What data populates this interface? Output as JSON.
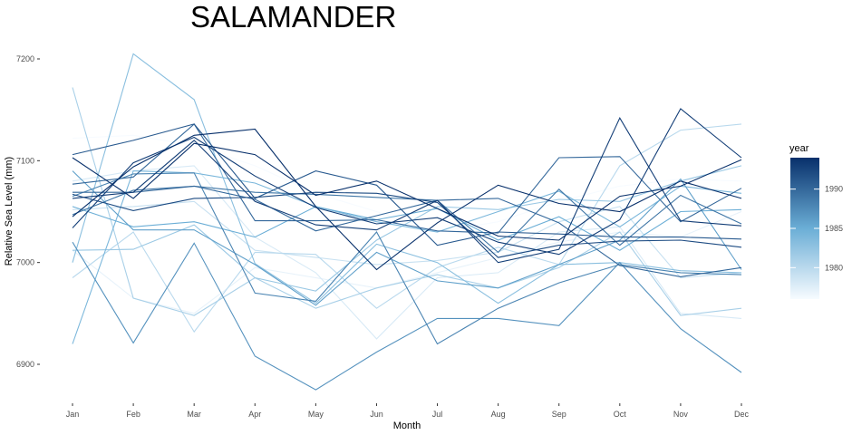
{
  "chart_data": {
    "type": "line",
    "title": "SALAMANDER",
    "xlabel": "Month",
    "ylabel": "Relative Sea Level (mm)",
    "categories": [
      "Jan",
      "Feb",
      "Mar",
      "Apr",
      "May",
      "Jun",
      "Jul",
      "Aug",
      "Sep",
      "Oct",
      "Nov",
      "Dec"
    ],
    "ylim": [
      6860,
      7220
    ],
    "yticks": [
      6900,
      7000,
      7100,
      7200
    ],
    "grid": false,
    "legend": {
      "title": "year",
      "position": "right",
      "type": "colorbar",
      "range": [
        1976,
        1994
      ],
      "ticks": [
        1980,
        1985,
        1990
      ],
      "colors": [
        "#f7fbff",
        "#08306b"
      ]
    },
    "series": [
      {
        "year": 1976,
        "values": [
          7122,
          7125,
          7115,
          7095,
          7068,
          7050,
          7030,
          7040,
          7060,
          7075,
          7082,
          7080
        ]
      },
      {
        "year": 1977,
        "values": [
          7012,
          6965,
          6950,
          6995,
          6985,
          6975,
          6990,
          7005,
          7020,
          7030,
          7025,
          7050
        ]
      },
      {
        "year": 1978,
        "values": [
          7080,
          7090,
          7095,
          7025,
          6990,
          6925,
          6985,
          6990,
          7030,
          7035,
          6950,
          6945
        ]
      },
      {
        "year": 1979,
        "values": [
          7052,
          7055,
          7060,
          7012,
          7005,
          6998,
          7002,
          7010,
          7040,
          7055,
          6985,
          6990
        ]
      },
      {
        "year": 1980,
        "values": [
          6985,
          7030,
          6932,
          7010,
          7008,
          6955,
          6995,
          7015,
          6998,
          7095,
          7130,
          7136
        ]
      },
      {
        "year": 1981,
        "values": [
          7172,
          6965,
          6948,
          6985,
          6955,
          6975,
          6988,
          6975,
          6995,
          7030,
          6948,
          6955
        ]
      },
      {
        "year": 1982,
        "values": [
          7012,
          7013,
          7037,
          6985,
          6972,
          7022,
          7055,
          7052,
          7062,
          7060,
          7080,
          7095
        ]
      },
      {
        "year": 1983,
        "values": [
          7000,
          7205,
          7160,
          6999,
          6960,
          7018,
          7000,
          6960,
          6998,
          7000,
          6992,
          6990
        ]
      },
      {
        "year": 1984,
        "values": [
          6920,
          7090,
          7088,
          7078,
          7055,
          7040,
          7030,
          7050,
          7070,
          7035,
          7075,
          7068
        ]
      },
      {
        "year": 1985,
        "values": [
          7055,
          7035,
          7040,
          7025,
          7055,
          7042,
          7053,
          7022,
          7045,
          7012,
          7050,
          7052
        ]
      },
      {
        "year": 1986,
        "values": [
          7090,
          7032,
          7032,
          6998,
          6958,
          7010,
          6982,
          6975,
          6998,
          7022,
          7082,
          6993
        ]
      },
      {
        "year": 1987,
        "values": [
          7020,
          6921,
          7019,
          6908,
          6875,
          6912,
          6945,
          6945,
          6938,
          7000,
          6935,
          6892
        ]
      },
      {
        "year": 1988,
        "values": [
          7065,
          7087,
          7088,
          6970,
          6962,
          7030,
          6920,
          6955,
          6980,
          6998,
          6990,
          6988
        ]
      },
      {
        "year": 1989,
        "values": [
          7047,
          7071,
          7075,
          7069,
          7067,
          7064,
          7061,
          7010,
          7072,
          7017,
          7066,
          7038
        ]
      },
      {
        "year": 1990,
        "values": [
          7069,
          7069,
          7075,
          7062,
          7031,
          7046,
          7061,
          7063,
          7039,
          6997,
          6986,
          6995
        ]
      },
      {
        "year": 1990,
        "values": [
          7077,
          7084,
          7136,
          7041,
          7041,
          7042,
          7031,
          7029,
          7103,
          7104,
          7040,
          7073
        ]
      },
      {
        "year": 1991,
        "values": [
          7106,
          7120,
          7136,
          7063,
          7090,
          7076,
          7017,
          7030,
          7028,
          7025,
          7025,
          7023
        ]
      },
      {
        "year": 1992,
        "values": [
          7067,
          7051,
          7063,
          7064,
          7069,
          7068,
          7059,
          7005,
          7017,
          7021,
          7022,
          7015
        ]
      },
      {
        "year": 1993,
        "values": [
          7034,
          7098,
          7123,
          7085,
          7054,
          7038,
          7044,
          7020,
          7008,
          7042,
          7151,
          7103
        ]
      },
      {
        "year": 1993,
        "values": [
          7063,
          7069,
          7120,
          7060,
          7037,
          7032,
          7061,
          7000,
          7013,
          7142,
          7041,
          7036
        ]
      },
      {
        "year": 1994,
        "values": [
          7045,
          7094,
          7125,
          7131,
          7055,
          6993,
          7039,
          7076,
          7058,
          7050,
          7080,
          7063
        ]
      },
      {
        "year": 1994,
        "values": [
          7103,
          7063,
          7117,
          7106,
          7066,
          7080,
          7053,
          7026,
          7022,
          7065,
          7075,
          7101
        ]
      }
    ]
  }
}
